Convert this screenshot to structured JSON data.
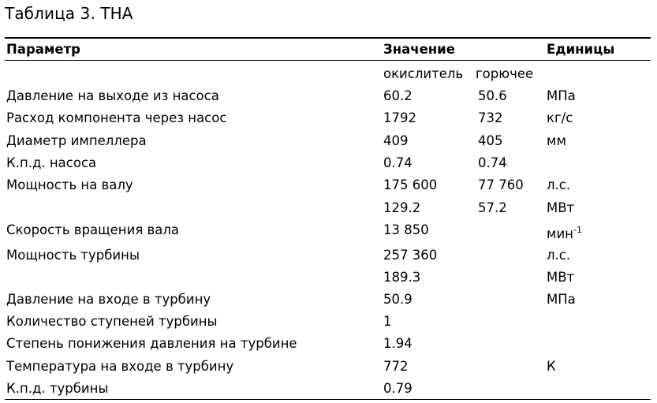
{
  "caption": "Таблица 3. THA",
  "header": {
    "parameter": "Параметр",
    "value": "Значение",
    "units": "Единицы"
  },
  "subheader": {
    "oxidizer": "окислитель",
    "fuel": "горючее"
  },
  "rows": [
    {
      "parameter": "Давление на выходе из насоса",
      "oxidizer": "60.2",
      "fuel": "50.6",
      "unit": "МПа",
      "unit_sup": ""
    },
    {
      "parameter": "Расход компонента через насос",
      "oxidizer": "1792",
      "fuel": "732",
      "unit": "кг/с",
      "unit_sup": ""
    },
    {
      "parameter": "Диаметр импеллера",
      "oxidizer": "409",
      "fuel": "405",
      "unit": "мм",
      "unit_sup": ""
    },
    {
      "parameter": "К.п.д. насоса",
      "oxidizer": "0.74",
      "fuel": "0.74",
      "unit": "",
      "unit_sup": ""
    },
    {
      "parameter": "Мощность на валу",
      "oxidizer": "175 600",
      "fuel": "77 760",
      "unit": "л.с.",
      "unit_sup": ""
    },
    {
      "parameter": "",
      "oxidizer": "129.2",
      "fuel": "57.2",
      "unit": "МВт",
      "unit_sup": ""
    },
    {
      "parameter": "Скорость вращения вала",
      "oxidizer": "13 850",
      "fuel": "",
      "unit": "мин",
      "unit_sup": "-1"
    },
    {
      "parameter": "Мощность турбины",
      "oxidizer": "257 360",
      "fuel": "",
      "unit": "л.с.",
      "unit_sup": ""
    },
    {
      "parameter": "",
      "oxidizer": "189.3",
      "fuel": "",
      "unit": "МВт",
      "unit_sup": ""
    },
    {
      "parameter": "Давление на входе в турбину",
      "oxidizer": "50.9",
      "fuel": "",
      "unit": "МПа",
      "unit_sup": ""
    },
    {
      "parameter": "Количество ступеней турбины",
      "oxidizer": "1",
      "fuel": "",
      "unit": "",
      "unit_sup": ""
    },
    {
      "parameter": "Степень понижения давления на турбине",
      "oxidizer": "1.94",
      "fuel": "",
      "unit": "",
      "unit_sup": ""
    },
    {
      "parameter": "Температура на входе в турбину",
      "oxidizer": "772",
      "fuel": "",
      "unit": "К",
      "unit_sup": ""
    },
    {
      "parameter": "К.п.д. турбины",
      "oxidizer": "0.79",
      "fuel": "",
      "unit": "",
      "unit_sup": ""
    }
  ]
}
